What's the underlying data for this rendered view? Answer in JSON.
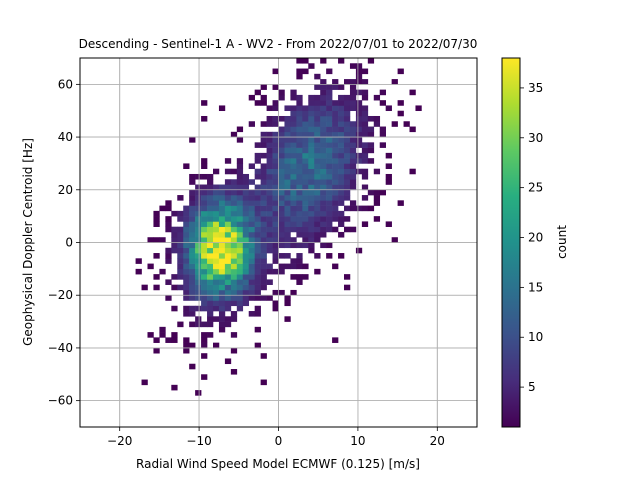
{
  "chart_data": {
    "type": "heatmap",
    "title": "Descending - Sentinel-1 A - WV2 - From 2022/07/01 to 2022/07/30",
    "xlabel": "Radial Wind Speed Model ECMWF (0.125) [m/s]",
    "ylabel": "Geophysical Doppler Centroid [Hz]",
    "xlim": [
      -25,
      25
    ],
    "ylim": [
      -70,
      70
    ],
    "xticks": [
      -20,
      -10,
      0,
      10,
      20
    ],
    "yticks": [
      -60,
      -40,
      -20,
      0,
      20,
      40,
      60
    ],
    "grid": true,
    "colormap": "viridis",
    "colorbar": {
      "label": "count",
      "min": 1,
      "max": 38,
      "ticks": [
        5,
        10,
        15,
        20,
        25,
        30,
        35
      ]
    },
    "bin_size": {
      "x": 0.75,
      "y": 2.0
    },
    "clusters": [
      {
        "center_x": -7.5,
        "center_y": -2,
        "peak_count": 38,
        "description_color": "#fde725"
      },
      {
        "center_x": 4,
        "center_y": 30,
        "peak_count": 12,
        "description_color": "#31688e"
      }
    ]
  }
}
